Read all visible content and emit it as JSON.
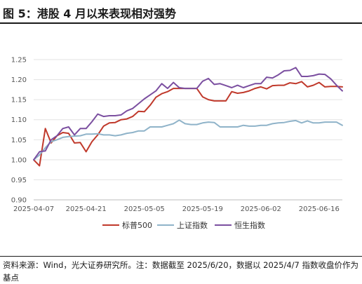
{
  "figure": {
    "title": "图 5：港股 4 月以来表现相对强势",
    "source": "资料来源：Wind，光大证券研究所。注：数据截至 2025/6/20，数据以 2025/4/7 指数收盘价作为基点"
  },
  "chart_data": {
    "type": "line",
    "ylim": [
      0.9,
      1.25
    ],
    "yticks": [
      "0.90",
      "0.95",
      "1.00",
      "1.05",
      "1.10",
      "1.15",
      "1.20",
      "1.25"
    ],
    "xticks": [
      "2025-04-07",
      "2025-04-21",
      "2025-05-05",
      "2025-05-19",
      "2025-06-02",
      "2025-06-16"
    ],
    "x": [
      "2025-04-07",
      "2025-04-08",
      "2025-04-09",
      "2025-04-10",
      "2025-04-11",
      "2025-04-14",
      "2025-04-15",
      "2025-04-16",
      "2025-04-17",
      "2025-04-21",
      "2025-04-22",
      "2025-04-23",
      "2025-04-24",
      "2025-04-25",
      "2025-04-28",
      "2025-04-29",
      "2025-04-30",
      "2025-05-01",
      "2025-05-02",
      "2025-05-05",
      "2025-05-06",
      "2025-05-07",
      "2025-05-08",
      "2025-05-09",
      "2025-05-12",
      "2025-05-13",
      "2025-05-14",
      "2025-05-15",
      "2025-05-16",
      "2025-05-19",
      "2025-05-20",
      "2025-05-21",
      "2025-05-22",
      "2025-05-23",
      "2025-05-26",
      "2025-05-27",
      "2025-05-28",
      "2025-05-29",
      "2025-05-30",
      "2025-06-02",
      "2025-06-03",
      "2025-06-04",
      "2025-06-05",
      "2025-06-06",
      "2025-06-09",
      "2025-06-10",
      "2025-06-11",
      "2025-06-12",
      "2025-06-13",
      "2025-06-16",
      "2025-06-17",
      "2025-06-18",
      "2025-06-19",
      "2025-06-20"
    ],
    "series": [
      {
        "name": "标普500",
        "color": "#c0392b",
        "values": [
          1.0,
          0.985,
          1.078,
          1.042,
          1.06,
          1.068,
          1.066,
          1.042,
          1.043,
          1.02,
          1.045,
          1.062,
          1.084,
          1.092,
          1.093,
          1.1,
          1.102,
          1.108,
          1.121,
          1.12,
          1.136,
          1.156,
          1.165,
          1.17,
          1.178,
          1.178,
          1.178,
          1.178,
          1.178,
          1.157,
          1.15,
          1.147,
          1.147,
          1.147,
          1.17,
          1.166,
          1.168,
          1.172,
          1.178,
          1.182,
          1.177,
          1.185,
          1.186,
          1.186,
          1.192,
          1.19,
          1.195,
          1.182,
          1.186,
          1.193,
          1.182,
          1.183,
          1.183,
          1.182
        ]
      },
      {
        "name": "上证指数",
        "color": "#8fb3c9",
        "values": [
          1.0,
          1.012,
          1.03,
          1.045,
          1.05,
          1.056,
          1.058,
          1.059,
          1.06,
          1.064,
          1.064,
          1.065,
          1.062,
          1.062,
          1.06,
          1.062,
          1.066,
          1.068,
          1.072,
          1.072,
          1.082,
          1.082,
          1.082,
          1.086,
          1.09,
          1.099,
          1.09,
          1.088,
          1.088,
          1.092,
          1.094,
          1.093,
          1.082,
          1.082,
          1.082,
          1.082,
          1.086,
          1.084,
          1.084,
          1.086,
          1.086,
          1.09,
          1.092,
          1.093,
          1.096,
          1.098,
          1.092,
          1.097,
          1.092,
          1.092,
          1.094,
          1.094,
          1.094,
          1.086
        ]
      },
      {
        "name": "恒生指数",
        "color": "#7b4fa0",
        "values": [
          1.0,
          1.02,
          1.022,
          1.05,
          1.06,
          1.078,
          1.082,
          1.062,
          1.078,
          1.078,
          1.095,
          1.114,
          1.108,
          1.11,
          1.11,
          1.112,
          1.122,
          1.128,
          1.14,
          1.152,
          1.162,
          1.172,
          1.19,
          1.178,
          1.193,
          1.18,
          1.178,
          1.178,
          1.178,
          1.196,
          1.203,
          1.188,
          1.19,
          1.185,
          1.18,
          1.186,
          1.18,
          1.185,
          1.19,
          1.19,
          1.206,
          1.204,
          1.212,
          1.222,
          1.223,
          1.23,
          1.208,
          1.208,
          1.21,
          1.214,
          1.213,
          1.202,
          1.186,
          1.172
        ]
      }
    ]
  }
}
